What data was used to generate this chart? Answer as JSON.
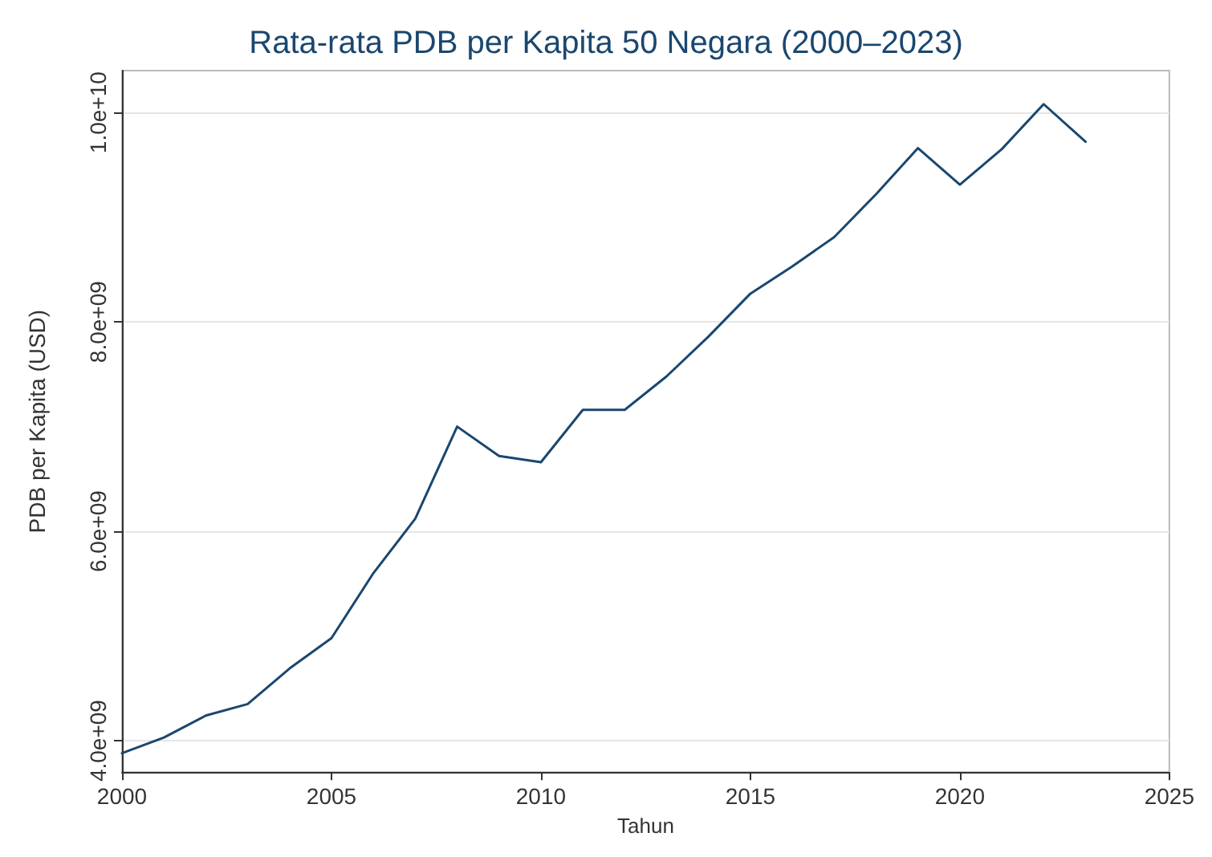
{
  "chart_data": {
    "type": "line",
    "title": "Rata-rata PDB per Kapita 50 Negara (2000–2023)",
    "xlabel": "Tahun",
    "ylabel": "PDB per Kapita (USD)",
    "x": [
      2000,
      2001,
      2002,
      2003,
      2004,
      2005,
      2006,
      2007,
      2008,
      2009,
      2010,
      2011,
      2012,
      2013,
      2014,
      2015,
      2016,
      2017,
      2018,
      2019,
      2020,
      2021,
      2022,
      2023
    ],
    "series": [
      {
        "color": "#1a476f",
        "values": [
          3880000000,
          4030000000,
          4240000000,
          4350000000,
          4690000000,
          4980000000,
          5600000000,
          6120000000,
          7000000000,
          6720000000,
          6660000000,
          7160000000,
          7160000000,
          7480000000,
          7860000000,
          8270000000,
          8530000000,
          8810000000,
          9220000000,
          9660000000,
          9310000000,
          9650000000,
          10080000000,
          9720000000
        ]
      }
    ],
    "xlim": [
      2000,
      2025
    ],
    "xticks": [
      2000,
      2005,
      2010,
      2015,
      2020,
      2025
    ],
    "ylim": [
      3700000000,
      10400000000
    ],
    "yticks": [
      {
        "value": 4000000000,
        "label": "4.0e+09"
      },
      {
        "value": 6000000000,
        "label": "6.0e+09"
      },
      {
        "value": 8000000000,
        "label": "8.0e+09"
      },
      {
        "value": 10000000000,
        "label": "1.0e+10"
      }
    ],
    "grid": "y",
    "marker": "none",
    "line_style": "solid"
  }
}
